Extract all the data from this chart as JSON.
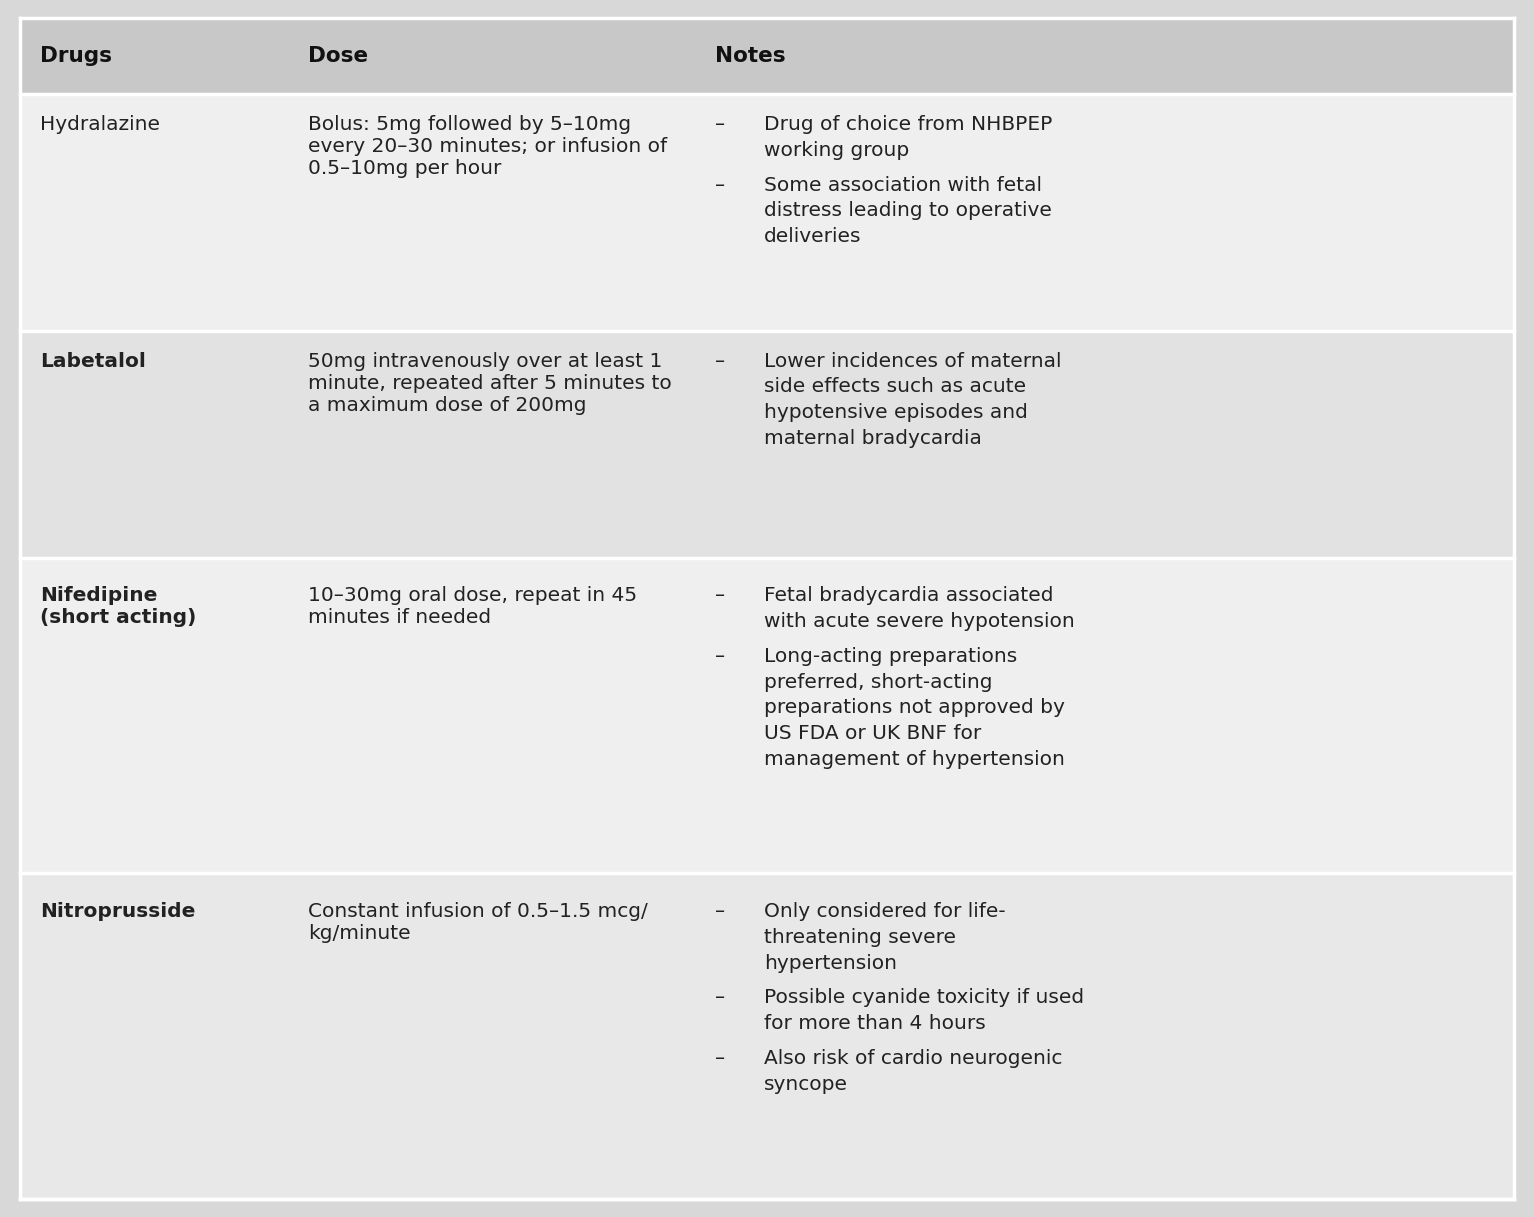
{
  "header_bg": "#c8c8c8",
  "row_bg_light": "#efefef",
  "row_bg_medium": "#e2e2e2",
  "header_text_color": "#111111",
  "body_text_color": "#222222",
  "headers": [
    "Drugs",
    "Dose",
    "Notes"
  ],
  "rows": [
    {
      "drug": "Hydralazine",
      "drug_bold": false,
      "dose": "Bolus: 5mg followed by 5–10mg\nevery 20–30 minutes; or infusion of\n0.5–10mg per hour",
      "notes": [
        "Drug of choice from NHBPEP\nworking group",
        "Some association with fetal\ndistress leading to operative\ndeliveries"
      ],
      "bg": "#efefef"
    },
    {
      "drug": "Labetalol",
      "drug_bold": true,
      "dose": "50mg intravenously over at least 1\nminute, repeated after 5 minutes to\na maximum dose of 200mg",
      "notes": [
        "Lower incidences of maternal\nside effects such as acute\nhypotensive episodes and\nmaternal bradycardia"
      ],
      "bg": "#e2e2e2"
    },
    {
      "drug": "Nifedipine\n(short acting)",
      "drug_bold": true,
      "dose": "10–30mg oral dose, repeat in 45\nminutes if needed",
      "notes": [
        "Fetal bradycardia associated\nwith acute severe hypotension",
        "Long-acting preparations\npreferred, short-acting\npreparations not approved by\nUS FDA or UK BNF for\nmanagement of hypertension"
      ],
      "bg": "#efefef"
    },
    {
      "drug": "Nitroprusside",
      "drug_bold": true,
      "dose": "Constant infusion of 0.5–1.5 mcg/\nkg/minute",
      "notes": [
        "Only considered for life-\nthreatening severe\nhypertension",
        "Possible cyanide toxicity if used\nfor more than 4 hours",
        "Also risk of cardio neurogenic\nsyncope"
      ],
      "bg": "#e8e8e8"
    }
  ]
}
